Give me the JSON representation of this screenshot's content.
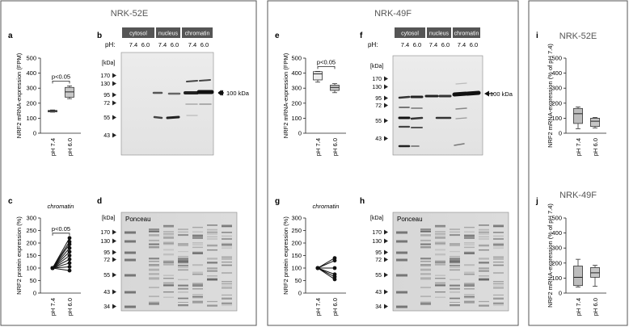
{
  "sections": {
    "left_title": "NRK-52E",
    "mid_title": "NRK-49F",
    "right_top_title": "NRK-52E",
    "right_bottom_title": "NRK-49F"
  },
  "letters": {
    "a": "a",
    "b": "b",
    "c": "c",
    "d": "d",
    "e": "e",
    "f": "f",
    "g": "g",
    "h": "h",
    "i": "i",
    "j": "j"
  },
  "blot": {
    "ph_label": "pH:",
    "fractions": [
      "cytosol",
      "nucleus",
      "chromatin"
    ],
    "ph_values": [
      "7.4",
      "6.0"
    ],
    "kda_label": "[kDa]",
    "markers_top": [
      "170",
      "130",
      "95",
      "72",
      "55",
      "43"
    ],
    "markers_bottom": [
      "170",
      "130",
      "95",
      "72",
      "55",
      "43",
      "34"
    ],
    "band_label": "100 kDa",
    "ponceau_label": "Ponceau"
  },
  "chart_data": [
    {
      "id": "a",
      "type": "box",
      "ylabel": "NRF2 mRNA-expression (FPM)",
      "ylim": [
        0,
        500
      ],
      "yticks": [
        0,
        100,
        200,
        300,
        400,
        500
      ],
      "categories": [
        "pH 7.4",
        "pH 6.0"
      ],
      "boxes": [
        {
          "min": 140,
          "q1": 142,
          "median": 147,
          "q3": 152,
          "max": 155
        },
        {
          "min": 230,
          "q1": 240,
          "median": 275,
          "q3": 305,
          "max": 315
        }
      ],
      "significance": "p<0.05"
    },
    {
      "id": "c",
      "type": "paired-scatter",
      "title": "chromatin",
      "ylabel": "NRF2 protein expression (%)",
      "ylim": [
        0,
        300
      ],
      "yticks": [
        0,
        50,
        100,
        150,
        200,
        250,
        300
      ],
      "categories": [
        "pH 7.4",
        "pH 6.0"
      ],
      "pairs": [
        [
          100,
          220
        ],
        [
          100,
          205
        ],
        [
          100,
          195
        ],
        [
          100,
          180
        ],
        [
          100,
          165
        ],
        [
          100,
          150
        ],
        [
          100,
          135
        ],
        [
          100,
          120
        ],
        [
          100,
          105
        ],
        [
          100,
          90
        ]
      ],
      "significance": "p<0.05"
    },
    {
      "id": "e",
      "type": "box",
      "ylabel": "NRF2 mRNA-expression (FPM)",
      "ylim": [
        0,
        500
      ],
      "yticks": [
        0,
        100,
        200,
        300,
        400,
        500
      ],
      "categories": [
        "pH 7.4",
        "pH 6.0"
      ],
      "boxes": [
        {
          "min": 340,
          "q1": 355,
          "median": 395,
          "q3": 410,
          "max": 412
        },
        {
          "min": 270,
          "q1": 285,
          "median": 305,
          "q3": 320,
          "max": 330
        }
      ],
      "significance": "p<0.05"
    },
    {
      "id": "g",
      "type": "paired-scatter",
      "title": "chromatin",
      "ylabel": "NRF2 protein expression (%)",
      "ylim": [
        0,
        300
      ],
      "yticks": [
        0,
        50,
        100,
        150,
        200,
        250,
        300
      ],
      "categories": [
        "pH 7.4",
        "pH 6.0"
      ],
      "pairs": [
        [
          100,
          140
        ],
        [
          100,
          130
        ],
        [
          100,
          100
        ],
        [
          100,
          75
        ],
        [
          100,
          65
        ],
        [
          100,
          55
        ]
      ]
    },
    {
      "id": "i",
      "type": "box",
      "ylabel": "NRF2 mRNA-expression (% of pH 7.4)",
      "ylim": [
        0,
        500
      ],
      "yticks": [
        0,
        100,
        200,
        300,
        400,
        500
      ],
      "categories": [
        "pH 7.4",
        "pH 6.0"
      ],
      "boxes": [
        {
          "min": 30,
          "q1": 65,
          "median": 130,
          "q3": 165,
          "max": 175
        },
        {
          "min": 35,
          "q1": 45,
          "median": 80,
          "q3": 100,
          "max": 105
        }
      ]
    },
    {
      "id": "j",
      "type": "box",
      "ylabel": "NRF2 mRNA-expression (% of pH 7.4)",
      "ylim": [
        0,
        500
      ],
      "yticks": [
        0,
        100,
        200,
        300,
        400,
        500
      ],
      "categories": [
        "pH 7.4",
        "pH 6.0"
      ],
      "boxes": [
        {
          "min": 40,
          "q1": 50,
          "median": 105,
          "q3": 180,
          "max": 225
        },
        {
          "min": 45,
          "q1": 105,
          "median": 135,
          "q3": 170,
          "max": 185
        }
      ]
    }
  ]
}
